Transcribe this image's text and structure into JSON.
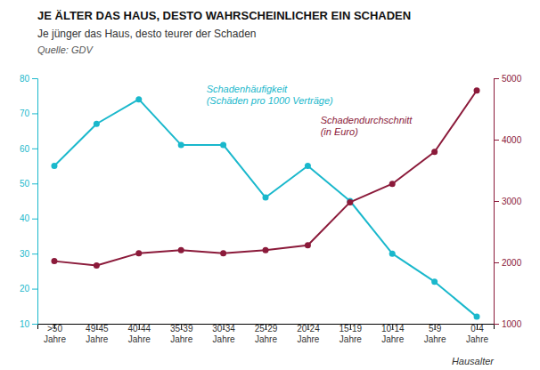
{
  "chart_data": {
    "type": "line",
    "title": "JE ÄLTER DAS HAUS, DESTO WAHRSCHEINLICHER EIN SCHADEN",
    "subtitle": "Je jünger das Haus, desto teurer der Schaden",
    "source": "Quelle: GDV",
    "x_label": "Hausalter",
    "categories": [
      ">50\nJahre",
      "49-45\nJahre",
      "40-44\nJahre",
      "35-39\nJahre",
      "30-34\nJahre",
      "25-29\nJahre",
      "20-24\nJahre",
      "15-19\nJahre",
      "10-14\nJahre",
      "5-9\nJahre",
      "0-4\nJahre"
    ],
    "series": [
      {
        "name": "Schadenhäufigkeit\n(Schäden pro 1000 Verträge)",
        "color": "#1ab8cc",
        "marker": "circle",
        "line_style": "solid",
        "values": [
          55,
          67,
          74,
          61,
          61,
          46,
          55,
          45,
          30,
          22,
          12
        ]
      },
      {
        "name": "Schadendurchschnitt\n(in Euro)",
        "color": "#8b1a3a",
        "marker": "circle",
        "line_style": "solid",
        "axis": "y2",
        "values": [
          2020,
          1950,
          2150,
          2200,
          2150,
          2200,
          2280,
          2980,
          3280,
          3800,
          4800
        ]
      }
    ],
    "ylim": [
      10,
      80
    ],
    "yticks": [
      10,
      20,
      30,
      40,
      50,
      60,
      70,
      80
    ],
    "y2lim": [
      1000,
      5000
    ],
    "y2ticks": [
      1000,
      2000,
      3000,
      4000,
      5000
    ],
    "grid": false
  }
}
